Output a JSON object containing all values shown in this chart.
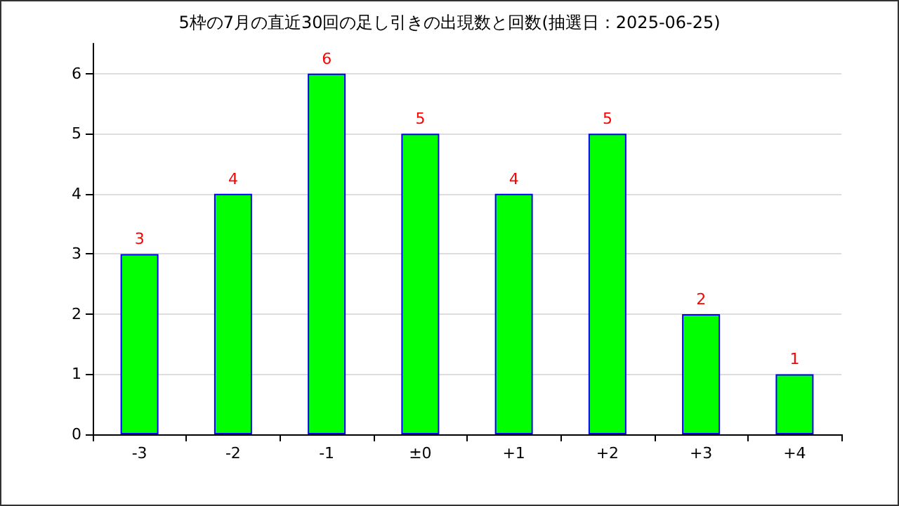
{
  "chart_data": {
    "type": "bar",
    "title": "5枠の7月の直近30回の足し引きの出現数と回数(抽選日：2025-06-25)",
    "categories": [
      "-3",
      "-2",
      "-1",
      "±0",
      "+1",
      "+2",
      "+3",
      "+4"
    ],
    "values": [
      3,
      4,
      6,
      5,
      4,
      5,
      2,
      1
    ],
    "color": "#00ff00",
    "ylim": [
      0,
      6.5
    ],
    "yticks": [
      0,
      1,
      2,
      3,
      4,
      5,
      6
    ],
    "grid": "y",
    "data_labels": true
  }
}
